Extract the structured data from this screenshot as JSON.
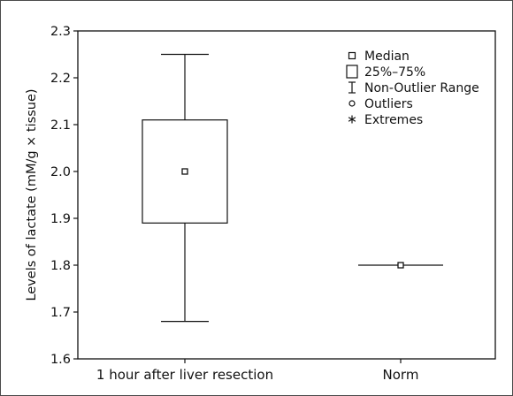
{
  "chart_data": {
    "type": "box",
    "ylabel": "Levels of lactate (mM/g × tissue)",
    "xlabel": "",
    "ylim": [
      1.6,
      2.3
    ],
    "yticks": [
      1.6,
      1.7,
      1.8,
      1.9,
      2.0,
      2.1,
      2.2,
      2.3
    ],
    "ytick_labels": [
      "1.6",
      "1.7",
      "1.8",
      "1.9",
      "2.0",
      "2.1",
      "2.2",
      "2.3"
    ],
    "categories": [
      "1 hour after liver resection",
      "Norm"
    ],
    "boxes": [
      {
        "category": "1 hour after liver resection",
        "whisker_low": 1.68,
        "q1": 1.89,
        "median": 2.0,
        "q3": 2.11,
        "whisker_high": 2.25
      },
      {
        "category": "Norm",
        "whisker_low": 1.8,
        "q1": 1.8,
        "median": 1.8,
        "q3": 1.8,
        "whisker_high": 1.8
      }
    ],
    "legend": {
      "position": "top-right",
      "entries": [
        {
          "symbol": "square-small",
          "label": "Median"
        },
        {
          "symbol": "square-large",
          "label": "25%–75%"
        },
        {
          "symbol": "range-bar",
          "label": "Non-Outlier Range"
        },
        {
          "symbol": "circle",
          "label": "Outliers"
        },
        {
          "symbol": "asterisk",
          "label": "Extremes"
        }
      ]
    },
    "grid": false
  }
}
